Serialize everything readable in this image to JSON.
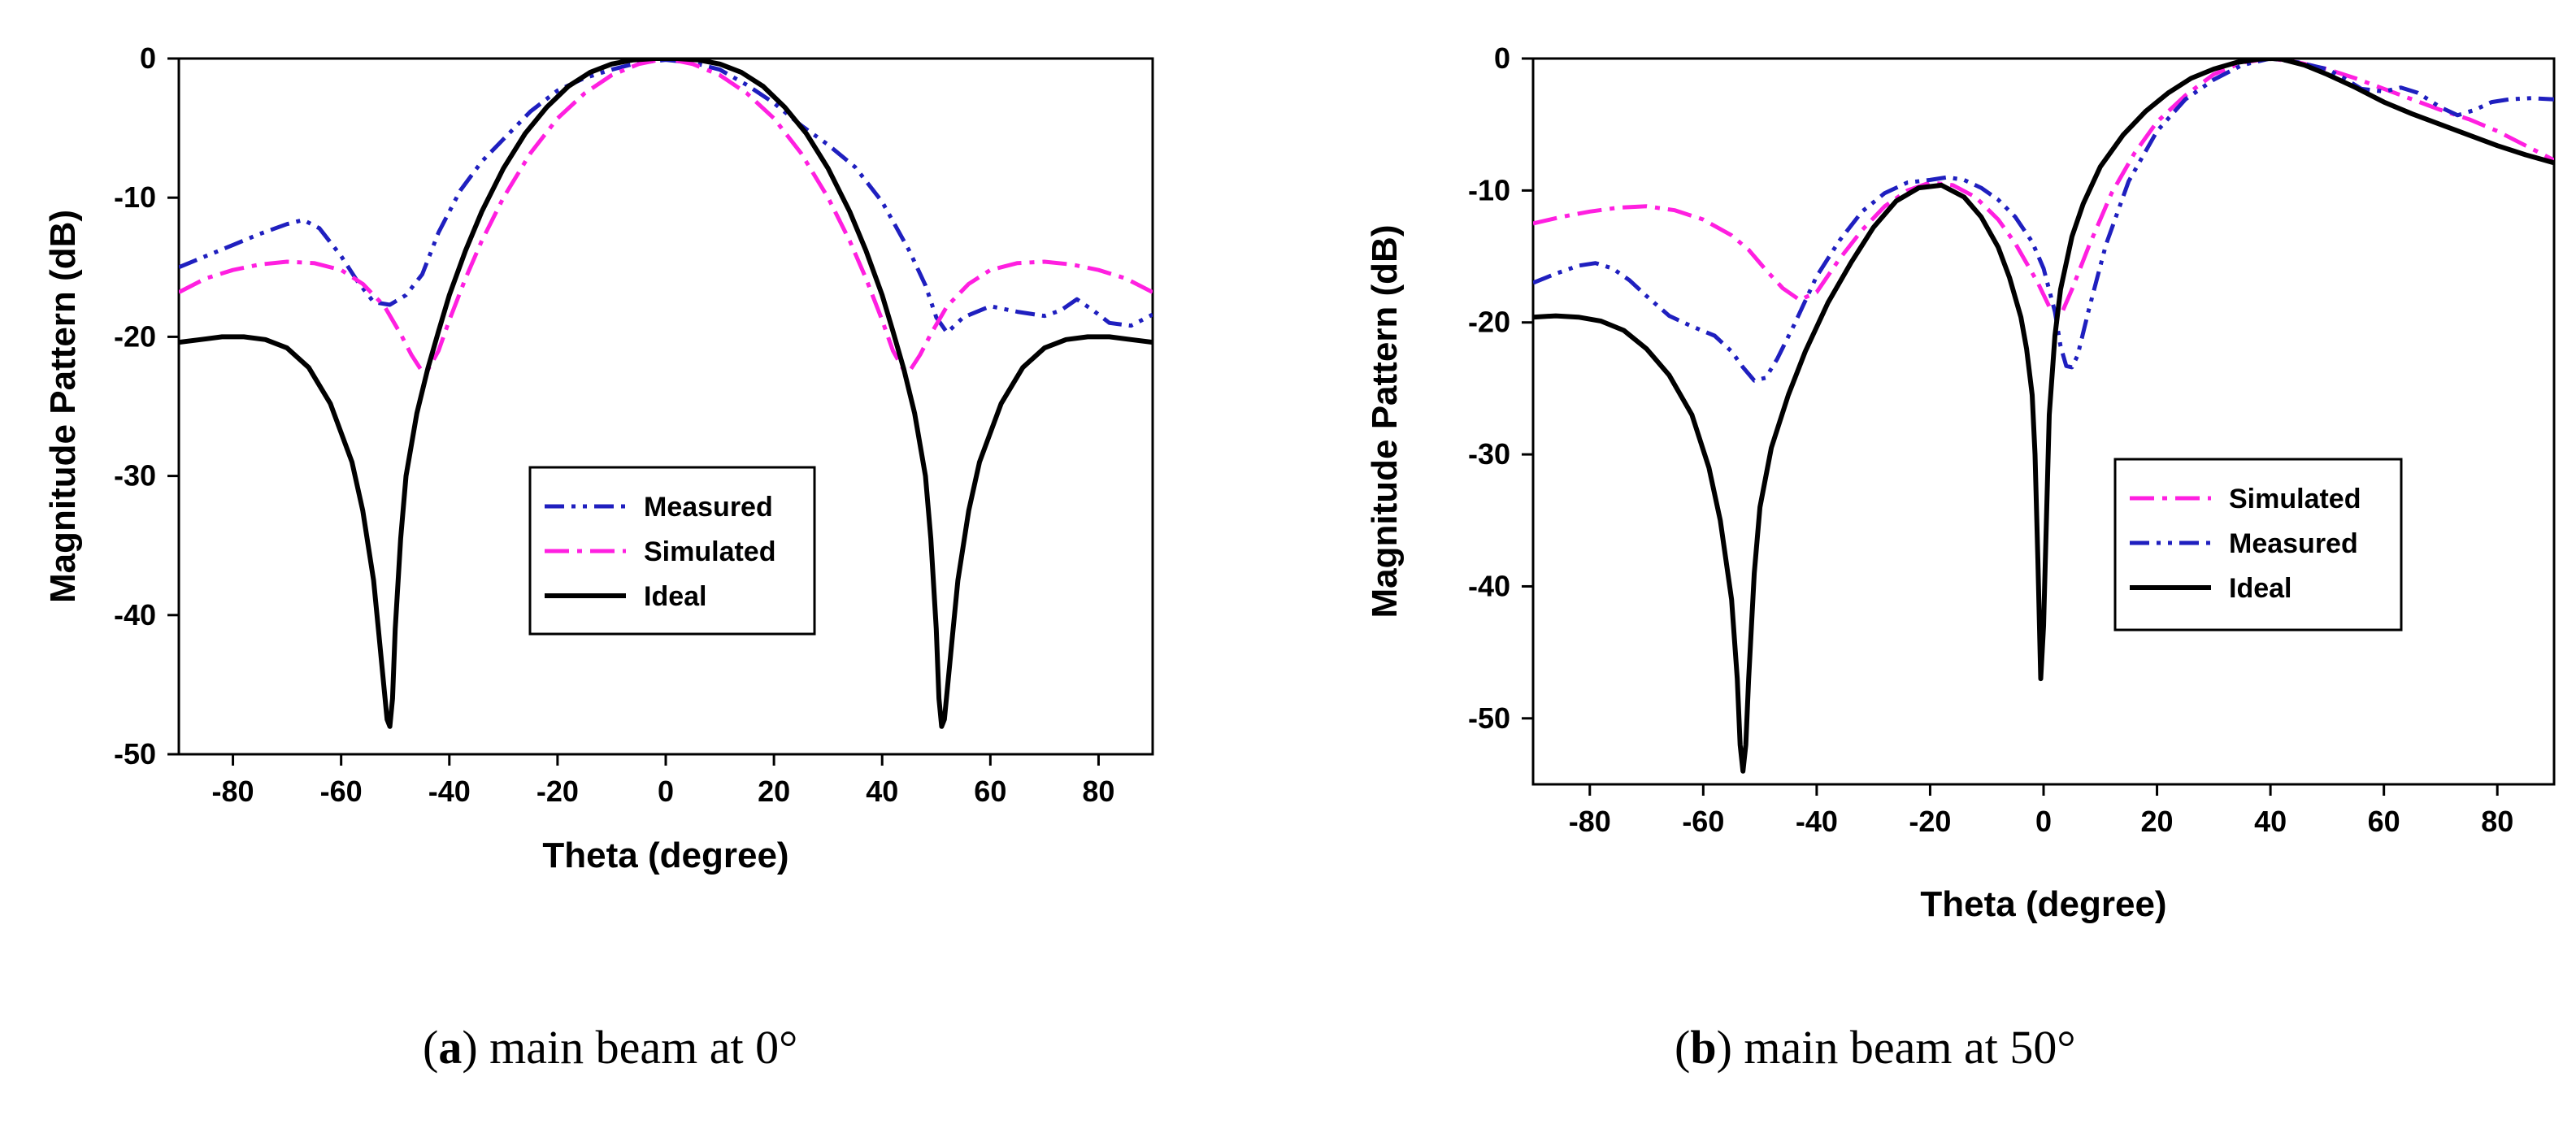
{
  "chart_data": [
    {
      "type": "line",
      "id": "a",
      "caption": {
        "letter": "a",
        "text": "main beam at 0°",
        "open": "(",
        "close": ")"
      },
      "xlabel": "Theta (degree)",
      "ylabel": "Magnitude Pattern (dB)",
      "xlim": [
        -90,
        90
      ],
      "ylim": [
        -50,
        0
      ],
      "xticks": [
        -80,
        -60,
        -40,
        -20,
        0,
        20,
        40,
        60,
        80
      ],
      "yticks": [
        0,
        -10,
        -20,
        -30,
        -40,
        -50
      ],
      "legend_position": "center-right",
      "legend_order": [
        "Measured",
        "Simulated",
        "Ideal"
      ],
      "series": [
        {
          "name": "Measured",
          "color": "#1f1fbf",
          "style": "dash-dot-dot",
          "x": [
            -90,
            -85,
            -80,
            -75,
            -70,
            -67,
            -64,
            -60,
            -57,
            -54,
            -51,
            -48,
            -45,
            -42,
            -38,
            -34,
            -30,
            -25,
            -20,
            -15,
            -10,
            -5,
            0,
            5,
            10,
            15,
            20,
            25,
            30,
            35,
            40,
            45,
            48,
            50,
            52,
            55,
            60,
            65,
            70,
            73,
            76,
            79,
            82,
            86,
            90
          ],
          "y": [
            -15,
            -14.2,
            -13.4,
            -12.6,
            -11.9,
            -11.6,
            -12.2,
            -14.2,
            -16,
            -17.5,
            -17.7,
            -17,
            -15.5,
            -12.5,
            -9.5,
            -7.4,
            -5.8,
            -3.8,
            -2.3,
            -1.4,
            -0.8,
            -0.3,
            -0.1,
            -0.3,
            -0.8,
            -1.9,
            -3.2,
            -4.8,
            -6.2,
            -7.8,
            -10.3,
            -13.8,
            -16.3,
            -18.6,
            -19.7,
            -18.6,
            -17.8,
            -18.2,
            -18.5,
            -18.1,
            -17.3,
            -18.1,
            -19,
            -19.2,
            -18.4
          ]
        },
        {
          "name": "Simulated",
          "color": "#ff1fe0",
          "style": "dash-dot",
          "x": [
            -90,
            -85,
            -80,
            -75,
            -70,
            -65,
            -60,
            -56,
            -52,
            -49,
            -47,
            -45,
            -44,
            -42,
            -40,
            -37,
            -34,
            -30,
            -25,
            -20,
            -15,
            -10,
            -5,
            0,
            5,
            10,
            15,
            20,
            25,
            30,
            34,
            37,
            40,
            42,
            44,
            45,
            47,
            49,
            52,
            56,
            60,
            65,
            70,
            75,
            80,
            85,
            90
          ],
          "y": [
            -16.8,
            -15.8,
            -15.2,
            -14.8,
            -14.6,
            -14.7,
            -15.2,
            -16.2,
            -17.8,
            -19.8,
            -21.3,
            -22.5,
            -22.4,
            -21,
            -18.8,
            -15.8,
            -13.1,
            -10,
            -6.8,
            -4.3,
            -2.5,
            -1.2,
            -0.4,
            0,
            -0.4,
            -1.2,
            -2.5,
            -4.3,
            -6.8,
            -10,
            -13.1,
            -15.8,
            -18.8,
            -21,
            -22.4,
            -22.5,
            -21.3,
            -19.8,
            -17.8,
            -16.2,
            -15.2,
            -14.7,
            -14.6,
            -14.8,
            -15.2,
            -15.8,
            -16.8
          ]
        },
        {
          "name": "Ideal",
          "color": "#000000",
          "style": "solid",
          "x": [
            -90,
            -86,
            -82,
            -78,
            -74,
            -70,
            -66,
            -62,
            -58,
            -56,
            -54,
            -53,
            -52,
            -51.5,
            -51,
            -50.5,
            -50,
            -49,
            -48,
            -46,
            -44,
            -42,
            -40,
            -37,
            -34,
            -30,
            -26,
            -22,
            -18,
            -14,
            -10,
            -6,
            -2,
            0,
            2,
            6,
            10,
            14,
            18,
            22,
            26,
            30,
            34,
            37,
            40,
            42,
            44,
            46,
            48,
            49,
            50,
            50.5,
            51,
            51.5,
            52,
            53,
            54,
            56,
            58,
            62,
            66,
            70,
            74,
            78,
            82,
            86,
            90
          ],
          "y": [
            -20.4,
            -20.2,
            -20,
            -20,
            -20.2,
            -20.8,
            -22.2,
            -24.8,
            -29,
            -32.5,
            -37.5,
            -41.5,
            -45.5,
            -47.5,
            -48,
            -46,
            -41,
            -34.5,
            -30,
            -25.5,
            -22.3,
            -19.6,
            -17,
            -13.8,
            -11,
            -7.9,
            -5.4,
            -3.5,
            -2,
            -1,
            -0.4,
            -0.1,
            0,
            0,
            0,
            -0.1,
            -0.4,
            -1,
            -2,
            -3.5,
            -5.4,
            -7.9,
            -11,
            -13.8,
            -17,
            -19.6,
            -22.3,
            -25.5,
            -30,
            -34.5,
            -41,
            -46,
            -48,
            -47.5,
            -45.5,
            -41.5,
            -37.5,
            -32.5,
            -29,
            -24.8,
            -22.2,
            -20.8,
            -20.2,
            -20,
            -20,
            -20.2,
            -20.4
          ]
        }
      ]
    },
    {
      "type": "line",
      "id": "b",
      "caption": {
        "letter": "b",
        "text": "main beam at 50°",
        "open": "(",
        "close": ")"
      },
      "xlabel": "Theta (degree)",
      "ylabel": "Magnitude Pattern (dB)",
      "xlim": [
        -90,
        90
      ],
      "ylim": [
        -55,
        0
      ],
      "xticks": [
        -80,
        -60,
        -40,
        -20,
        0,
        20,
        40,
        60,
        80
      ],
      "yticks": [
        0,
        -10,
        -20,
        -30,
        -40,
        -50
      ],
      "legend_position": "center-right",
      "legend_order": [
        "Simulated",
        "Measured",
        "Ideal"
      ],
      "series": [
        {
          "name": "Simulated",
          "color": "#ff1fe0",
          "style": "dash-dot",
          "x": [
            -90,
            -85,
            -80,
            -75,
            -70,
            -65,
            -60,
            -55,
            -52,
            -49,
            -46,
            -43,
            -40,
            -36,
            -32,
            -28,
            -24,
            -20,
            -16,
            -12,
            -8,
            -5,
            -3,
            -1,
            1,
            3,
            5,
            8,
            12,
            16,
            20,
            25,
            30,
            35,
            40,
            45,
            50,
            55,
            60,
            65,
            70,
            75,
            80,
            85,
            90
          ],
          "y": [
            -12.5,
            -12,
            -11.6,
            -11.3,
            -11.2,
            -11.5,
            -12.2,
            -13.4,
            -14.5,
            -16,
            -17.4,
            -18.3,
            -17.7,
            -15.2,
            -13,
            -11.2,
            -10,
            -9.4,
            -9.6,
            -10.5,
            -12.2,
            -14,
            -15.5,
            -17,
            -18.8,
            -19.5,
            -17.5,
            -14.2,
            -10.2,
            -7.2,
            -4.8,
            -2.8,
            -1.2,
            -0.3,
            0,
            -0.3,
            -0.8,
            -1.5,
            -2.3,
            -3.1,
            -3.9,
            -4.6,
            -5.5,
            -6.6,
            -7.7
          ]
        },
        {
          "name": "Measured",
          "color": "#1f1fbf",
          "style": "dash-dot-dot",
          "x": [
            -90,
            -86,
            -82,
            -79,
            -76,
            -73,
            -70,
            -66,
            -62,
            -58,
            -55,
            -53,
            -51,
            -49,
            -47,
            -44,
            -40,
            -36,
            -32,
            -28,
            -24,
            -20,
            -17,
            -14,
            -11,
            -8,
            -5,
            -2,
            0,
            2,
            3,
            4,
            5,
            6,
            8,
            11,
            15,
            20,
            25,
            30,
            35,
            40,
            45,
            50,
            53,
            56,
            60,
            63,
            66,
            70,
            73,
            76,
            79,
            82,
            86,
            90
          ],
          "y": [
            -17,
            -16.3,
            -15.7,
            -15.5,
            -15.9,
            -16.8,
            -18,
            -19.5,
            -20.3,
            -21,
            -22.2,
            -23.4,
            -24.4,
            -24.2,
            -22.8,
            -20.2,
            -16.5,
            -13.8,
            -11.6,
            -10.2,
            -9.4,
            -9.2,
            -9,
            -9.2,
            -9.8,
            -10.7,
            -12,
            -13.9,
            -15.9,
            -19.2,
            -21.8,
            -23.3,
            -23.4,
            -22.5,
            -19,
            -14.1,
            -9.3,
            -5.5,
            -3.1,
            -1.6,
            -0.5,
            0,
            -0.3,
            -0.8,
            -1.5,
            -2.3,
            -2.5,
            -2.2,
            -2.6,
            -3.7,
            -4.3,
            -3.9,
            -3.3,
            -3.1,
            -3,
            -3.1
          ]
        },
        {
          "name": "Ideal",
          "color": "#000000",
          "style": "solid",
          "x": [
            -90,
            -86,
            -82,
            -78,
            -74,
            -70,
            -66,
            -62,
            -59,
            -57,
            -55,
            -54,
            -53.5,
            -53,
            -52.5,
            -52,
            -51,
            -50,
            -48,
            -45,
            -42,
            -38,
            -34,
            -30,
            -26,
            -22,
            -18,
            -14,
            -11,
            -8,
            -6,
            -4,
            -3,
            -2,
            -1.5,
            -1,
            -0.5,
            0,
            0.5,
            1,
            2,
            3,
            5,
            7,
            10,
            14,
            18,
            22,
            26,
            30,
            34,
            38,
            40,
            42,
            46,
            50,
            55,
            60,
            65,
            70,
            75,
            80,
            85,
            90
          ],
          "y": [
            -19.6,
            -19.5,
            -19.6,
            -19.9,
            -20.6,
            -22,
            -24,
            -27,
            -31,
            -35,
            -41,
            -47,
            -52,
            -54,
            -52,
            -47,
            -39,
            -34,
            -29.5,
            -25.5,
            -22.2,
            -18.5,
            -15.5,
            -12.8,
            -10.8,
            -9.8,
            -9.6,
            -10.5,
            -12,
            -14.3,
            -16.6,
            -19.6,
            -22,
            -25.5,
            -30,
            -38,
            -47,
            -43,
            -35,
            -27,
            -21,
            -17.5,
            -13.5,
            -11,
            -8.2,
            -5.8,
            -4,
            -2.6,
            -1.5,
            -0.8,
            -0.3,
            -0.05,
            0,
            -0.05,
            -0.5,
            -1.2,
            -2.2,
            -3.3,
            -4.2,
            -5,
            -5.8,
            -6.6,
            -7.3,
            -7.9
          ]
        }
      ]
    }
  ]
}
